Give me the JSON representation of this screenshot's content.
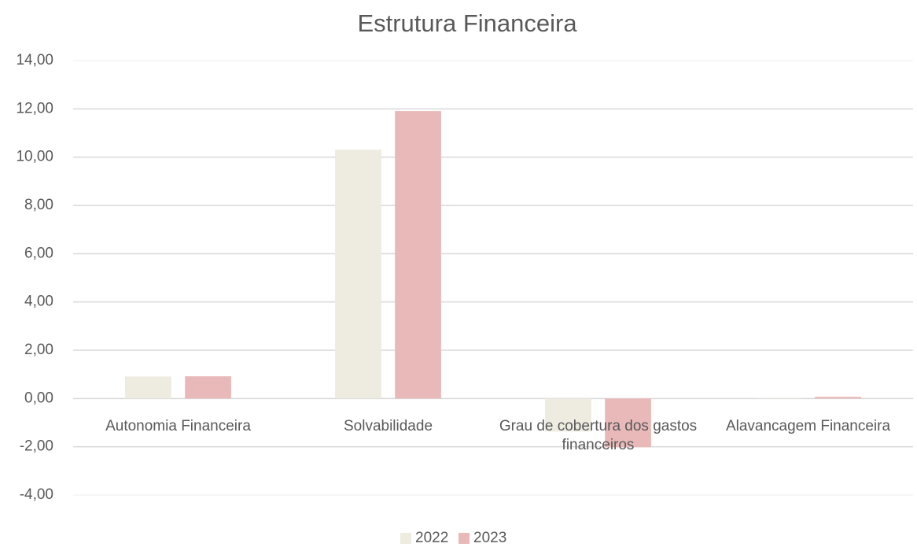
{
  "chart_data": {
    "type": "bar",
    "title": "Estrutura Financeira",
    "categories": [
      "Autonomia Financeira",
      "Solvabilidade",
      "Grau de cobertura dos gastos financeiros",
      "Alavancagem Financeira"
    ],
    "series": [
      {
        "name": "2022",
        "color": "#eeebe0",
        "values": [
          0.91,
          10.31,
          -1.37,
          0.02
        ]
      },
      {
        "name": "2023",
        "color": "#e9b9b9",
        "values": [
          0.92,
          11.91,
          -2.02,
          0.07
        ]
      }
    ],
    "ylim": [
      -4,
      14
    ],
    "yticks": [
      {
        "value": -4,
        "label": "-4,00"
      },
      {
        "value": -2,
        "label": "-2,00"
      },
      {
        "value": 0,
        "label": "0,00"
      },
      {
        "value": 2,
        "label": "2,00"
      },
      {
        "value": 4,
        "label": "4,00"
      },
      {
        "value": 6,
        "label": "6,00"
      },
      {
        "value": 8,
        "label": "8,00"
      },
      {
        "value": 10,
        "label": "10,00"
      },
      {
        "value": 12,
        "label": "12,00"
      },
      {
        "value": 14,
        "label": "14,00"
      }
    ],
    "grid": true,
    "legend": "bottom"
  }
}
